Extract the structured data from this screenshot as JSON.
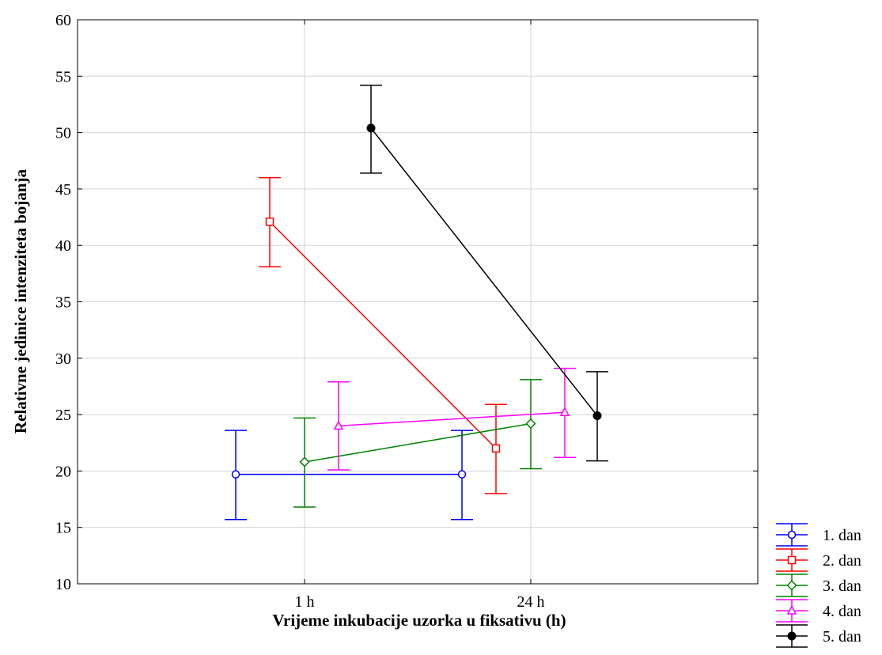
{
  "chart_data": {
    "type": "line",
    "title": "",
    "xlabel": "Vrijeme inkubacije uzorka u fiksativu (h)",
    "ylabel": "Relativne jedinice intenziteta bojanja",
    "categories": [
      "1 h",
      "24 h"
    ],
    "ylim": [
      10,
      60
    ],
    "yticks": [
      10,
      15,
      20,
      25,
      30,
      35,
      40,
      45,
      50,
      55,
      60
    ],
    "grid": true,
    "legend_position": "bottom-right",
    "error_bars": true,
    "series": [
      {
        "name": "1. dan",
        "color": "#0000ff",
        "marker": "circle",
        "values": [
          19.7,
          19.7
        ],
        "err_low": [
          15.7,
          15.7
        ],
        "err_high": [
          23.6,
          23.6
        ]
      },
      {
        "name": "2. dan",
        "color": "#ff0000",
        "marker": "square",
        "values": [
          42.1,
          22.0
        ],
        "err_low": [
          38.1,
          18.0
        ],
        "err_high": [
          46.0,
          25.9
        ]
      },
      {
        "name": "3. dan",
        "color": "#008000",
        "marker": "diamond",
        "values": [
          20.8,
          24.2
        ],
        "err_low": [
          16.8,
          20.2
        ],
        "err_high": [
          24.7,
          28.1
        ]
      },
      {
        "name": "4. dan",
        "color": "#ff00ff",
        "marker": "triangle",
        "values": [
          24.0,
          25.2
        ],
        "err_low": [
          20.1,
          21.2
        ],
        "err_high": [
          27.9,
          29.1
        ]
      },
      {
        "name": "5. dan",
        "color": "#000000",
        "marker": "dot",
        "values": [
          50.4,
          24.9
        ],
        "err_low": [
          46.4,
          20.9
        ],
        "err_high": [
          54.2,
          28.8
        ]
      }
    ]
  }
}
